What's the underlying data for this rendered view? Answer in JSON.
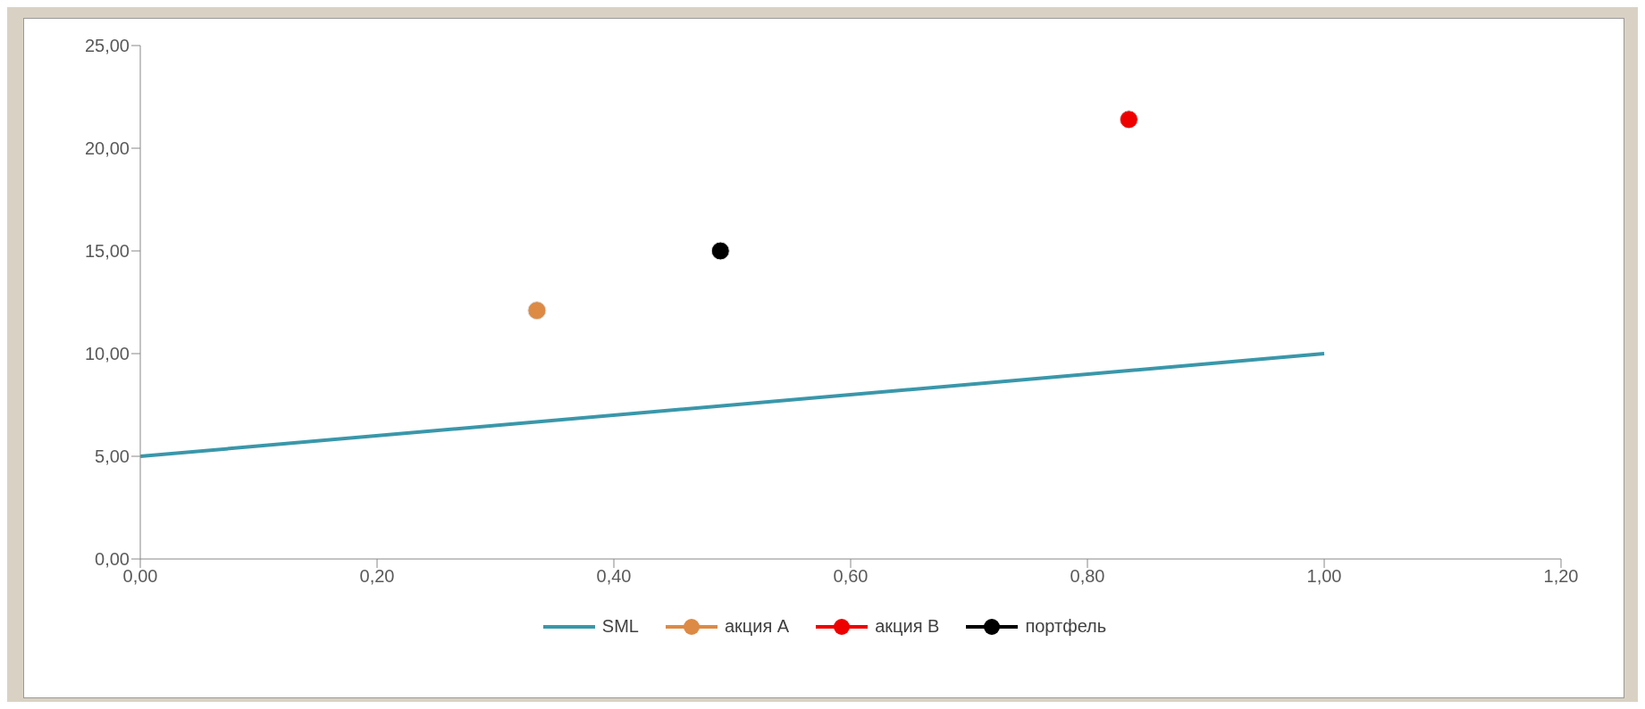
{
  "chart_data": {
    "type": "scatter",
    "legend": "bottom",
    "grid": false,
    "marker": "circle",
    "xlim": [
      0,
      1.2
    ],
    "xticks": [
      {
        "value": 0,
        "label": "0,00"
      },
      {
        "value": 0.2,
        "label": "0,20"
      },
      {
        "value": 0.4,
        "label": "0,40"
      },
      {
        "value": 0.6,
        "label": "0,60"
      },
      {
        "value": 0.8,
        "label": "0,80"
      },
      {
        "value": 1,
        "label": "1,00"
      },
      {
        "value": 1.2,
        "label": "1,20"
      }
    ],
    "ylim": [
      0,
      25
    ],
    "yticks": [
      {
        "value": 0,
        "label": "0,00"
      },
      {
        "value": 5,
        "label": "5,00"
      },
      {
        "value": 10,
        "label": "10,00"
      },
      {
        "value": 15,
        "label": "15,00"
      },
      {
        "value": 20,
        "label": "20,00"
      },
      {
        "value": 25,
        "label": "25,00"
      }
    ],
    "series": [
      {
        "name": "SML",
        "type": "line",
        "marker": "none",
        "color": "#3a97aa",
        "x": [
          0,
          1
        ],
        "values": [
          5,
          10
        ]
      },
      {
        "name": "акция A",
        "color": "#dd8a45",
        "x": [
          0.335
        ],
        "values": [
          12.1
        ]
      },
      {
        "name": "акция B",
        "color": "#ee0000",
        "x": [
          0.835
        ],
        "values": [
          21.4
        ]
      },
      {
        "name": "портфель",
        "color": "#000000",
        "x": [
          0.49
        ],
        "values": [
          15
        ]
      }
    ]
  }
}
